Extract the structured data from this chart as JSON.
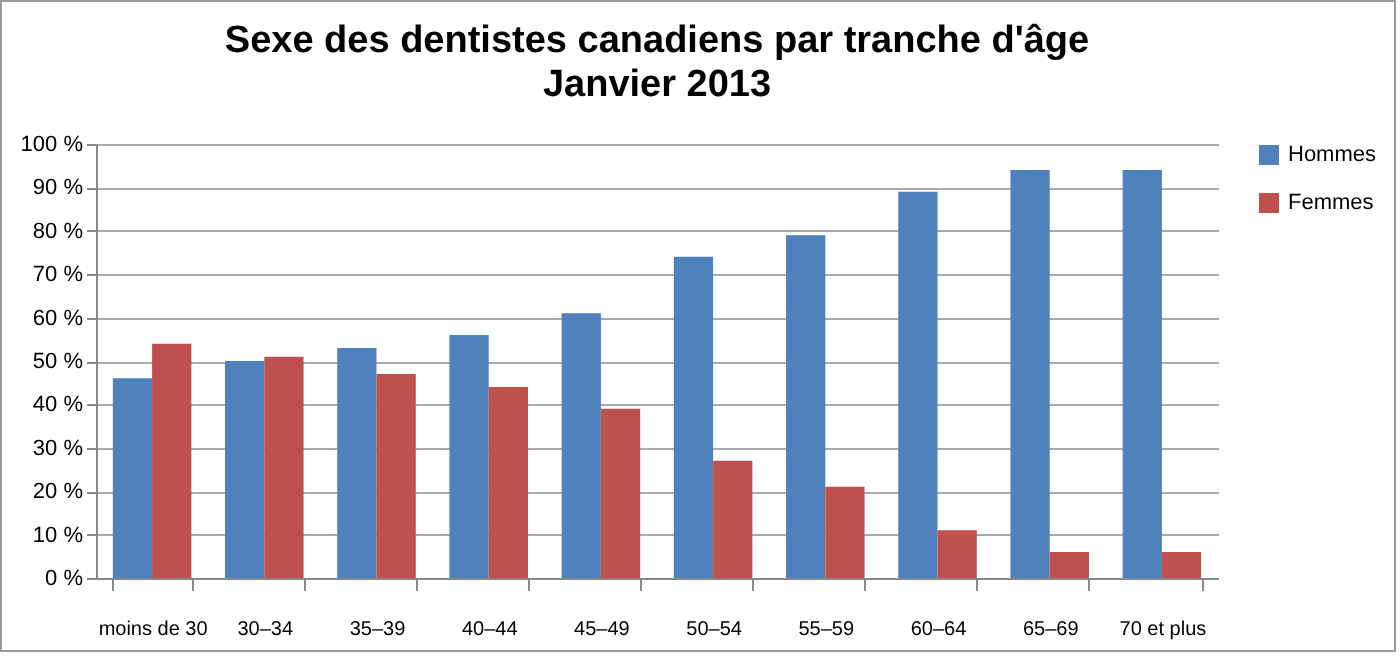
{
  "chart_data": {
    "type": "bar",
    "title": "Sexe des dentistes canadiens par tranche d'âge",
    "subtitle": "Janvier 2013",
    "categories": [
      "moins de 30",
      "30–34",
      "35–39",
      "40–44",
      "45–49",
      "50–54",
      "55–59",
      "60–64",
      "65–69",
      "70 et plus"
    ],
    "series": [
      {
        "name": "Hommes",
        "color": "#4f81bd",
        "values": [
          46,
          50,
          53,
          56,
          61,
          74,
          79,
          89,
          94,
          94
        ]
      },
      {
        "name": "Femmes",
        "color": "#c0504d",
        "values": [
          54,
          51,
          47,
          44,
          39,
          27,
          21,
          11,
          6,
          6
        ]
      }
    ],
    "ylim": [
      0,
      100
    ],
    "yticks": [
      {
        "value": 0,
        "label": "0 %"
      },
      {
        "value": 10,
        "label": "10 %"
      },
      {
        "value": 20,
        "label": "20 %"
      },
      {
        "value": 30,
        "label": "30 %"
      },
      {
        "value": 40,
        "label": "40 %"
      },
      {
        "value": 50,
        "label": "50 %"
      },
      {
        "value": 60,
        "label": "60 %"
      },
      {
        "value": 70,
        "label": "70 %"
      },
      {
        "value": 80,
        "label": "80 %"
      },
      {
        "value": 90,
        "label": "90 %"
      },
      {
        "value": 100,
        "label": "100 %"
      }
    ],
    "grid": "y",
    "legend": "right"
  }
}
